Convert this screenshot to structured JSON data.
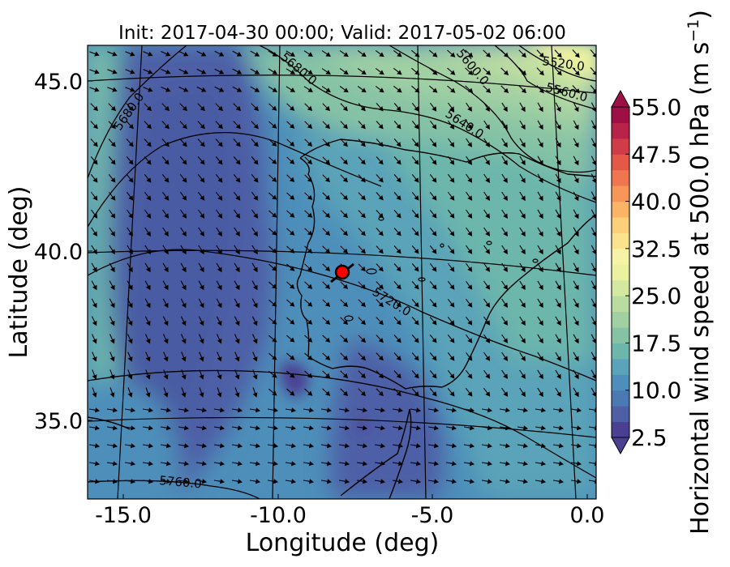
{
  "title": "Init: 2017-04-30 00:00; Valid: 2017-05-02 06:00",
  "xaxis": {
    "label": "Longitude (deg)",
    "ticks": [
      "-15.0",
      "-10.0",
      "-5.0",
      "0.0"
    ],
    "tick_values": [
      -15,
      -10,
      -5,
      0
    ],
    "range": [
      -16,
      0.2
    ]
  },
  "yaxis": {
    "label": "Latitude (deg)",
    "ticks": [
      "35.0",
      "40.0",
      "45.0"
    ],
    "tick_values": [
      35,
      40,
      45
    ],
    "range": [
      32.7,
      46.1
    ]
  },
  "colorbar": {
    "label": "Horizontal wind speed at 500.0 hPa (m s",
    "label_superscript": "−1",
    "label_close": ")",
    "ticks": [
      "2.5",
      "10.0",
      "17.5",
      "25.0",
      "32.5",
      "40.0",
      "47.5",
      "55.0"
    ],
    "tick_values": [
      2.5,
      10,
      17.5,
      25,
      32.5,
      40,
      47.5,
      55
    ],
    "range": [
      2.5,
      55
    ],
    "colors": [
      "#4b3f93",
      "#4e5fa6",
      "#4a79b3",
      "#4d8fba",
      "#5aa3b8",
      "#6cb6ac",
      "#86c3a5",
      "#a1d0a3",
      "#bbdca1",
      "#d4e89f",
      "#eaf19f",
      "#f7f3a6",
      "#fbe38e",
      "#fccf7b",
      "#fbb366",
      "#f8965a",
      "#f07650",
      "#e45848",
      "#d03d49",
      "#b82449",
      "#9e0f46"
    ],
    "extend": "both"
  },
  "contours": {
    "labels": [
      "5520.0",
      "5560.0",
      "5600.0",
      "5640.0",
      "5680.0",
      "5680.0",
      "5720.0",
      "5760.0"
    ]
  },
  "marker": {
    "lon": -7.7,
    "lat": 39.3,
    "color": "#ff0000"
  },
  "style": {
    "background": "#ffffff",
    "axis_color": "#000000"
  }
}
